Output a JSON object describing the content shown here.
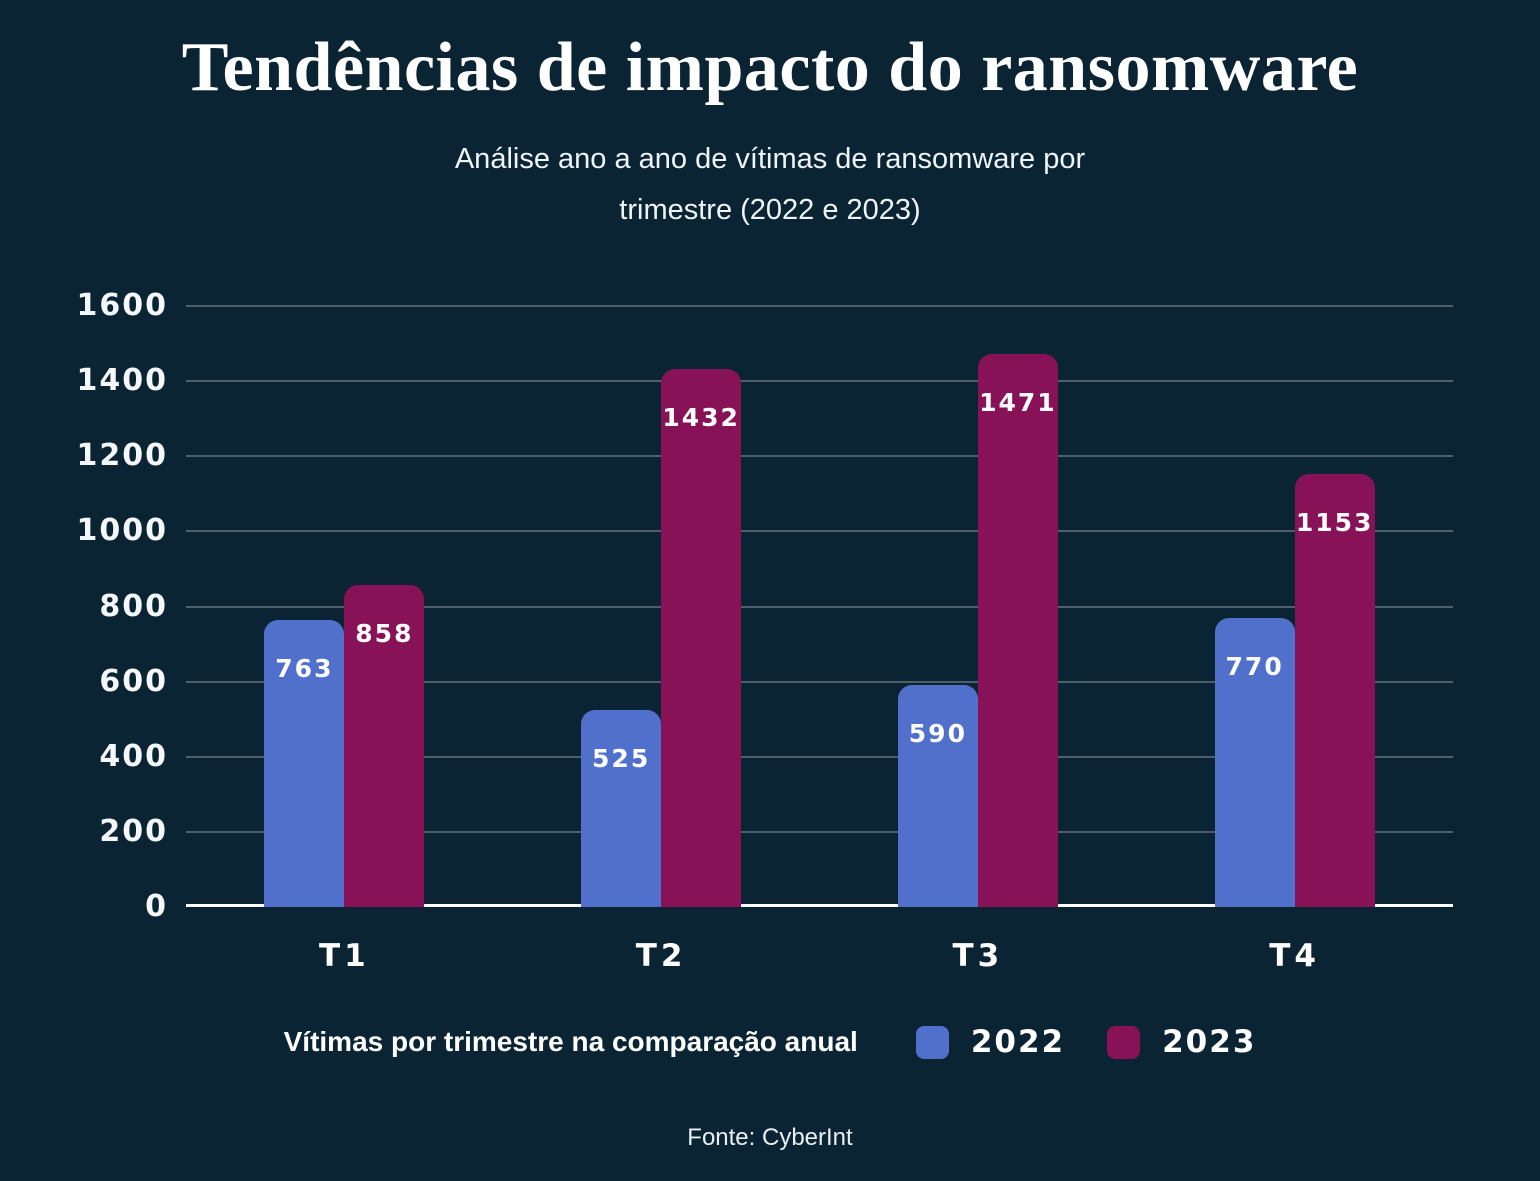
{
  "title": "Tendências de impacto do ransomware",
  "subtitle_lines": [
    "Análise ano a ano de vítimas de ransomware por",
    "trimestre (2022 e 2023)"
  ],
  "legend": {
    "label": "Vítimas por trimestre na comparação anual",
    "items": [
      {
        "name": "2022",
        "color": "#5070cb"
      },
      {
        "name": "2023",
        "color": "#871257"
      }
    ]
  },
  "source": "Fonte: CyberInt",
  "colors": {
    "background": "#0a2433",
    "bar_2022": "#5070cb",
    "bar_2023": "#871257",
    "gridline": "rgba(255,255,255,0.27)",
    "axis_line": "#ffffff",
    "text": "#ffffff"
  },
  "chart_data": {
    "type": "bar",
    "title": "Tendências de impacto do ransomware",
    "subtitle": "Análise ano a ano de vítimas de ransomware por trimestre (2022 e 2023)",
    "categories": [
      "T1",
      "T2",
      "T3",
      "T4"
    ],
    "series": [
      {
        "name": "2022",
        "color": "#5070cb",
        "values": [
          763,
          525,
          590,
          770
        ]
      },
      {
        "name": "2023",
        "color": "#871257",
        "values": [
          858,
          1432,
          1471,
          1153
        ]
      }
    ],
    "xlabel": "",
    "ylabel": "",
    "ylim": [
      0,
      1600
    ],
    "yticks": [
      0,
      200,
      400,
      600,
      800,
      1000,
      1200,
      1400,
      1600
    ],
    "grid": true,
    "legend_position": "bottom",
    "value_labels": "inside-top"
  }
}
